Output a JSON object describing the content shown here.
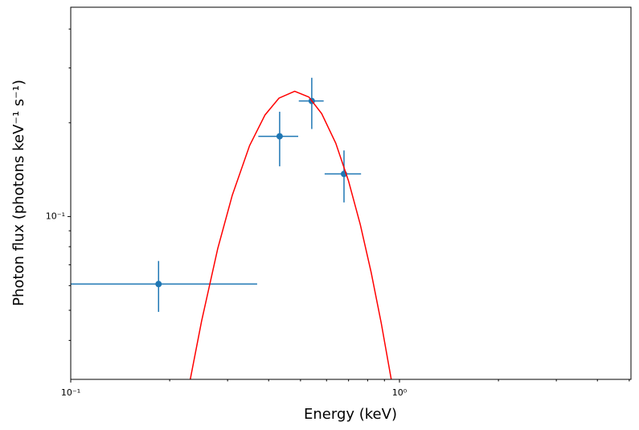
{
  "chart_data": {
    "type": "errorbar",
    "xlabel": "Energy (keV)",
    "ylabel": "Photon flux (photons keV⁻¹ s⁻¹)",
    "xscale": "log",
    "yscale": "log",
    "xlim": [
      0.1,
      5.06
    ],
    "ylim": [
      0.03,
      0.47
    ],
    "xticks": [
      {
        "value": 0.1,
        "label": "10⁻¹"
      },
      {
        "value": 1,
        "label": "10⁰"
      }
    ],
    "yticks": [
      {
        "value": 0.1,
        "label": "10⁻¹"
      }
    ],
    "xminorticks": [
      0.2,
      0.3,
      0.4,
      0.5,
      0.6,
      0.7,
      0.8,
      0.9,
      2,
      3,
      4,
      5
    ],
    "yminorticks": [
      0.04,
      0.05,
      0.06,
      0.07,
      0.08,
      0.09,
      0.2,
      0.3,
      0.4
    ],
    "series": [
      {
        "kind": "points",
        "color": "#1f77b4",
        "x": [
          0.185,
          0.432,
          0.541,
          0.678
        ],
        "values": [
          0.0607,
          0.181,
          0.235,
          0.137
        ],
        "xerr": [
          0.184,
          0.06,
          0.047,
          0.086
        ],
        "yerr": [
          0.0113,
          0.036,
          0.044,
          0.026
        ]
      },
      {
        "kind": "line",
        "color": "#ff0000",
        "x": [
          0.231,
          0.25,
          0.28,
          0.31,
          0.35,
          0.39,
          0.43,
          0.48,
          0.53,
          0.58,
          0.64,
          0.7,
          0.76,
          0.82,
          0.88,
          0.944
        ],
        "values": [
          0.03,
          0.0461,
          0.0789,
          0.117,
          0.169,
          0.212,
          0.24,
          0.2525,
          0.242,
          0.214,
          0.172,
          0.13,
          0.0942,
          0.0662,
          0.0455,
          0.03
        ]
      }
    ]
  }
}
